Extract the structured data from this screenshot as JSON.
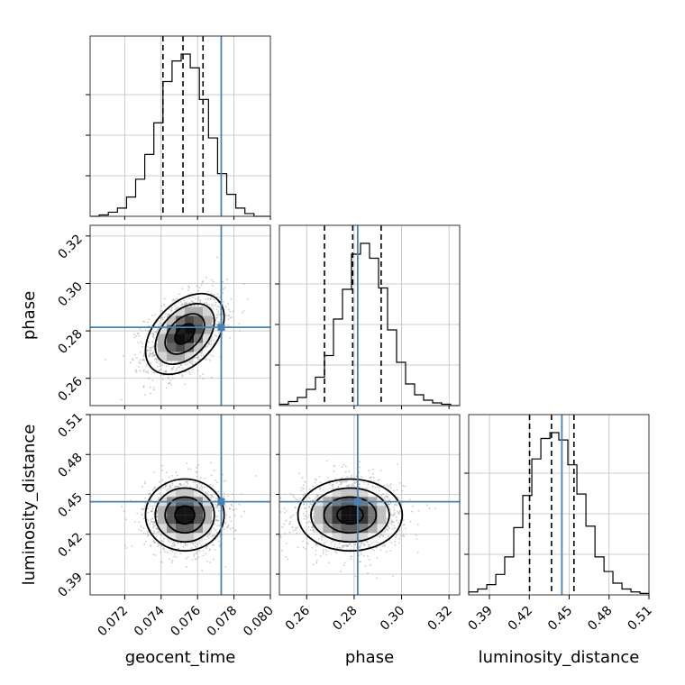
{
  "chart_data": {
    "type": "corner",
    "parameters": [
      "geocent_time",
      "phase",
      "luminosity_distance"
    ],
    "axis_labels": {
      "geocent_time": "geocent_time",
      "phase": "phase",
      "luminosity_distance": "luminosity_distance"
    },
    "ranges": {
      "geocent_time": [
        0.0701,
        0.08
      ],
      "phase": [
        0.2485,
        0.3245
      ],
      "luminosity_distance": [
        0.3744,
        0.51
      ]
    },
    "ticks": {
      "geocent_time": [
        "0.072",
        "0.074",
        "0.076",
        "0.078",
        "0.080"
      ],
      "phase": [
        "0.26",
        "0.28",
        "0.30",
        "0.32"
      ],
      "luminosity_distance": [
        "0.39",
        "0.42",
        "0.45",
        "0.48",
        "0.51"
      ]
    },
    "truths": {
      "geocent_time": 0.0773,
      "phase": 0.2815,
      "luminosity_distance": 0.4445
    },
    "truth_color": "#4682b4",
    "grid": true,
    "quantiles": {
      "geocent_time": [
        0.0741,
        0.0752,
        0.0763
      ],
      "phase": [
        0.2675,
        0.2794,
        0.2914
      ],
      "luminosity_distance": [
        0.4202,
        0.4367,
        0.4536
      ]
    },
    "marginals": {
      "geocent_time": {
        "bin_edges": [
          0.0701,
          0.0706,
          0.0711,
          0.0716,
          0.0721,
          0.0726,
          0.0731,
          0.0736,
          0.0741,
          0.0746,
          0.0751,
          0.0756,
          0.0761,
          0.0766,
          0.0771,
          0.0776,
          0.0781,
          0.0786,
          0.0791,
          0.0796,
          0.08
        ],
        "counts": [
          0,
          1,
          3,
          6,
          14,
          27,
          45,
          68,
          98,
          113,
          118,
          108,
          85,
          57,
          31,
          16,
          6,
          2,
          0,
          0
        ]
      },
      "phase": {
        "bin_edges": [
          0.2485,
          0.2523,
          0.2561,
          0.2599,
          0.2637,
          0.2675,
          0.2713,
          0.2751,
          0.2789,
          0.2827,
          0.2865,
          0.2903,
          0.2941,
          0.2979,
          0.3017,
          0.3055,
          0.3093,
          0.3131,
          0.3169,
          0.3207,
          0.3245
        ],
        "counts": [
          1,
          3,
          6,
          12,
          21,
          37,
          64,
          86,
          112,
          120,
          109,
          87,
          56,
          32,
          16,
          8,
          4,
          2,
          1,
          0
        ]
      },
      "luminosity_distance": {
        "bin_edges": [
          0.3744,
          0.3812,
          0.388,
          0.3948,
          0.4015,
          0.4083,
          0.4151,
          0.4219,
          0.4287,
          0.4355,
          0.4422,
          0.449,
          0.4558,
          0.4626,
          0.4694,
          0.4762,
          0.4829,
          0.4897,
          0.4965,
          0.5033,
          0.51
        ],
        "counts": [
          2,
          4,
          7,
          14,
          26,
          46,
          68,
          93,
          107,
          111,
          106,
          89,
          69,
          47,
          26,
          16,
          8,
          4,
          2,
          1
        ]
      }
    },
    "joint_2d": [
      {
        "x": "geocent_time",
        "y": "phase",
        "mean": [
          0.0753,
          0.2787
        ],
        "sd": [
          0.00108,
          0.0085
        ],
        "corr": 0.42
      },
      {
        "x": "geocent_time",
        "y": "luminosity_distance",
        "mean": [
          0.0753,
          0.4345
        ],
        "sd": [
          0.00108,
          0.0135
        ],
        "corr": 0.0
      },
      {
        "x": "phase",
        "y": "luminosity_distance",
        "mean": [
          0.2783,
          0.4345
        ],
        "sd": [
          0.011,
          0.0135
        ],
        "corr": 0.0
      }
    ],
    "contour_levels_sigma": [
      0.5,
      1.0,
      1.5,
      2.0
    ]
  }
}
